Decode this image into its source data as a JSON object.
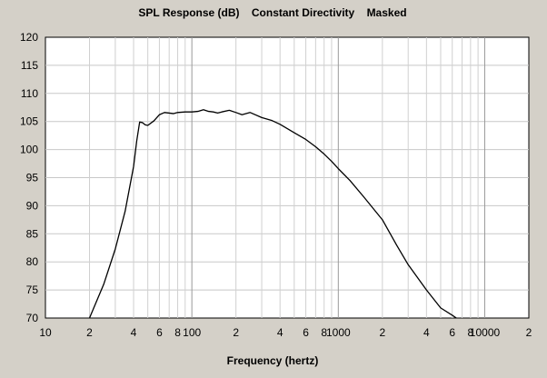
{
  "chart_data": {
    "type": "line",
    "title": "SPL Response (dB)    Constant Directivity    Masked",
    "xlabel": "Frequency (hertz)",
    "ylabel": "",
    "x_scale": "log",
    "xlim": [
      10,
      20000
    ],
    "ylim": [
      70,
      120
    ],
    "grid": true,
    "y_ticks": [
      "70",
      "75",
      "80",
      "85",
      "90",
      "95",
      "100",
      "105",
      "110",
      "115",
      "120"
    ],
    "x_ticks": [
      {
        "value": 10,
        "label": "10"
      },
      {
        "value": 20,
        "label": "2"
      },
      {
        "value": 40,
        "label": "4"
      },
      {
        "value": 60,
        "label": "6"
      },
      {
        "value": 80,
        "label": "8"
      },
      {
        "value": 100,
        "label": "100"
      },
      {
        "value": 200,
        "label": "2"
      },
      {
        "value": 400,
        "label": "4"
      },
      {
        "value": 600,
        "label": "6"
      },
      {
        "value": 800,
        "label": "8"
      },
      {
        "value": 1000,
        "label": "1000"
      },
      {
        "value": 2000,
        "label": "2"
      },
      {
        "value": 4000,
        "label": "4"
      },
      {
        "value": 6000,
        "label": "6"
      },
      {
        "value": 8000,
        "label": "8"
      },
      {
        "value": 10000,
        "label": "10000"
      },
      {
        "value": 20000,
        "label": "2"
      }
    ],
    "series": [
      {
        "color": "#000000",
        "x": [
          20,
          25,
          30,
          35,
          40,
          42,
          44,
          46,
          48,
          50,
          55,
          60,
          65,
          70,
          75,
          80,
          90,
          100,
          110,
          120,
          130,
          140,
          150,
          160,
          180,
          200,
          220,
          250,
          300,
          350,
          400,
          450,
          500,
          600,
          700,
          800,
          900,
          1000,
          1200,
          1500,
          2000,
          2500,
          3000,
          4000,
          5000,
          6000,
          6400
        ],
        "y": [
          70,
          76,
          82.3,
          89,
          97,
          101.5,
          104.9,
          104.8,
          104.4,
          104.3,
          105.1,
          106.2,
          106.6,
          106.5,
          106.4,
          106.6,
          106.7,
          106.7,
          106.8,
          107.1,
          106.8,
          106.7,
          106.5,
          106.7,
          107.0,
          106.6,
          106.2,
          106.6,
          105.7,
          105.2,
          104.5,
          103.7,
          103.0,
          101.8,
          100.5,
          99.2,
          97.9,
          96.6,
          94.5,
          91.5,
          87.5,
          83.0,
          79.5,
          75.0,
          71.8,
          70.5,
          70
        ]
      }
    ]
  }
}
